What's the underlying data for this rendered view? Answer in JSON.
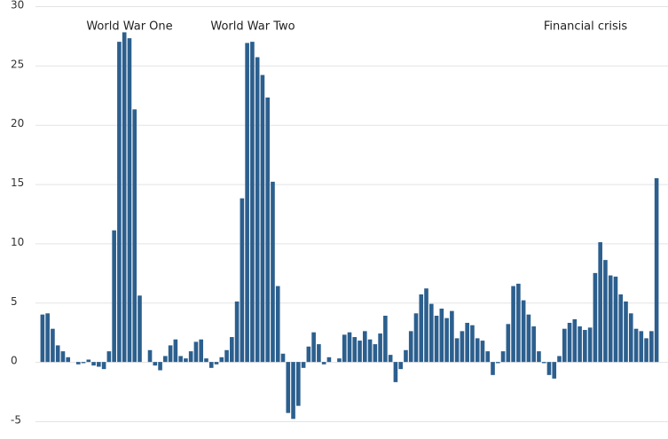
{
  "chart_data": {
    "type": "bar",
    "color": "#2c5f8e",
    "grid": true,
    "annotations": [
      "World War One",
      "World War Two",
      "Financial crisis"
    ],
    "ylim": [
      -5,
      30
    ],
    "yticks": [
      -5,
      0,
      5,
      10,
      15,
      20,
      25,
      30
    ],
    "values": [
      4.0,
      4.1,
      2.8,
      1.4,
      0.9,
      0.4,
      0,
      -0.2,
      -0.1,
      0.2,
      -0.3,
      -0.4,
      -0.6,
      0.9,
      11.1,
      27.0,
      27.8,
      27.3,
      21.3,
      5.6,
      0,
      1.0,
      -0.3,
      -0.7,
      0.5,
      1.4,
      1.9,
      0.5,
      0.3,
      0.9,
      1.7,
      1.9,
      0.3,
      -0.5,
      -0.2,
      0.4,
      1.0,
      2.1,
      5.1,
      13.8,
      26.9,
      27.0,
      25.7,
      24.2,
      22.3,
      15.2,
      6.4,
      0.7,
      -4.3,
      -4.8,
      -3.7,
      -0.5,
      1.3,
      2.5,
      1.5,
      -0.2,
      0.4,
      0,
      0.3,
      2.3,
      2.5,
      2.1,
      1.8,
      2.6,
      1.9,
      1.5,
      2.4,
      3.9,
      0.6,
      -1.7,
      -0.6,
      1.0,
      2.6,
      4.1,
      5.7,
      6.2,
      4.9,
      3.9,
      4.5,
      3.7,
      4.3,
      2.0,
      2.6,
      3.3,
      3.1,
      2.0,
      1.8,
      0.9,
      -1.1,
      -0.1,
      0.9,
      3.2,
      6.4,
      6.6,
      5.2,
      4.0,
      3.0,
      0.9,
      -0.1,
      -1.1,
      -1.4,
      0.5,
      2.8,
      3.3,
      3.6,
      3.0,
      2.7,
      2.9,
      7.5,
      10.1,
      8.6,
      7.3,
      7.2,
      5.7,
      5.1,
      4.1,
      2.8,
      2.6,
      2.0,
      2.6,
      15.5
    ]
  }
}
